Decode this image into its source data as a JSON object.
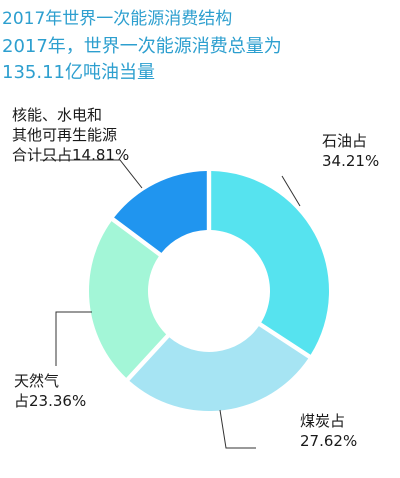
{
  "title": "2017年世界一次能源消费结构",
  "subtitle_lines": [
    "2017年，世界一次能源消费总量为",
    "135.11亿吨油当量"
  ],
  "chart_data": {
    "type": "pie",
    "donut": true,
    "slices": [
      {
        "label_lines": [
          "石油占",
          "34.21%"
        ],
        "value": 34.21,
        "color": "#56e3ef"
      },
      {
        "label_lines": [
          "煤炭占",
          "27.62%"
        ],
        "value": 27.62,
        "color": "#a6e4f3"
      },
      {
        "label_lines": [
          "天然气",
          "占23.36%"
        ],
        "value": 23.36,
        "color": "#a3f6d7"
      },
      {
        "label_lines": [
          "核能、水电和",
          "其他可再生能源",
          "合计只占14.81%"
        ],
        "value": 14.81,
        "color": "#2095ef"
      }
    ]
  }
}
